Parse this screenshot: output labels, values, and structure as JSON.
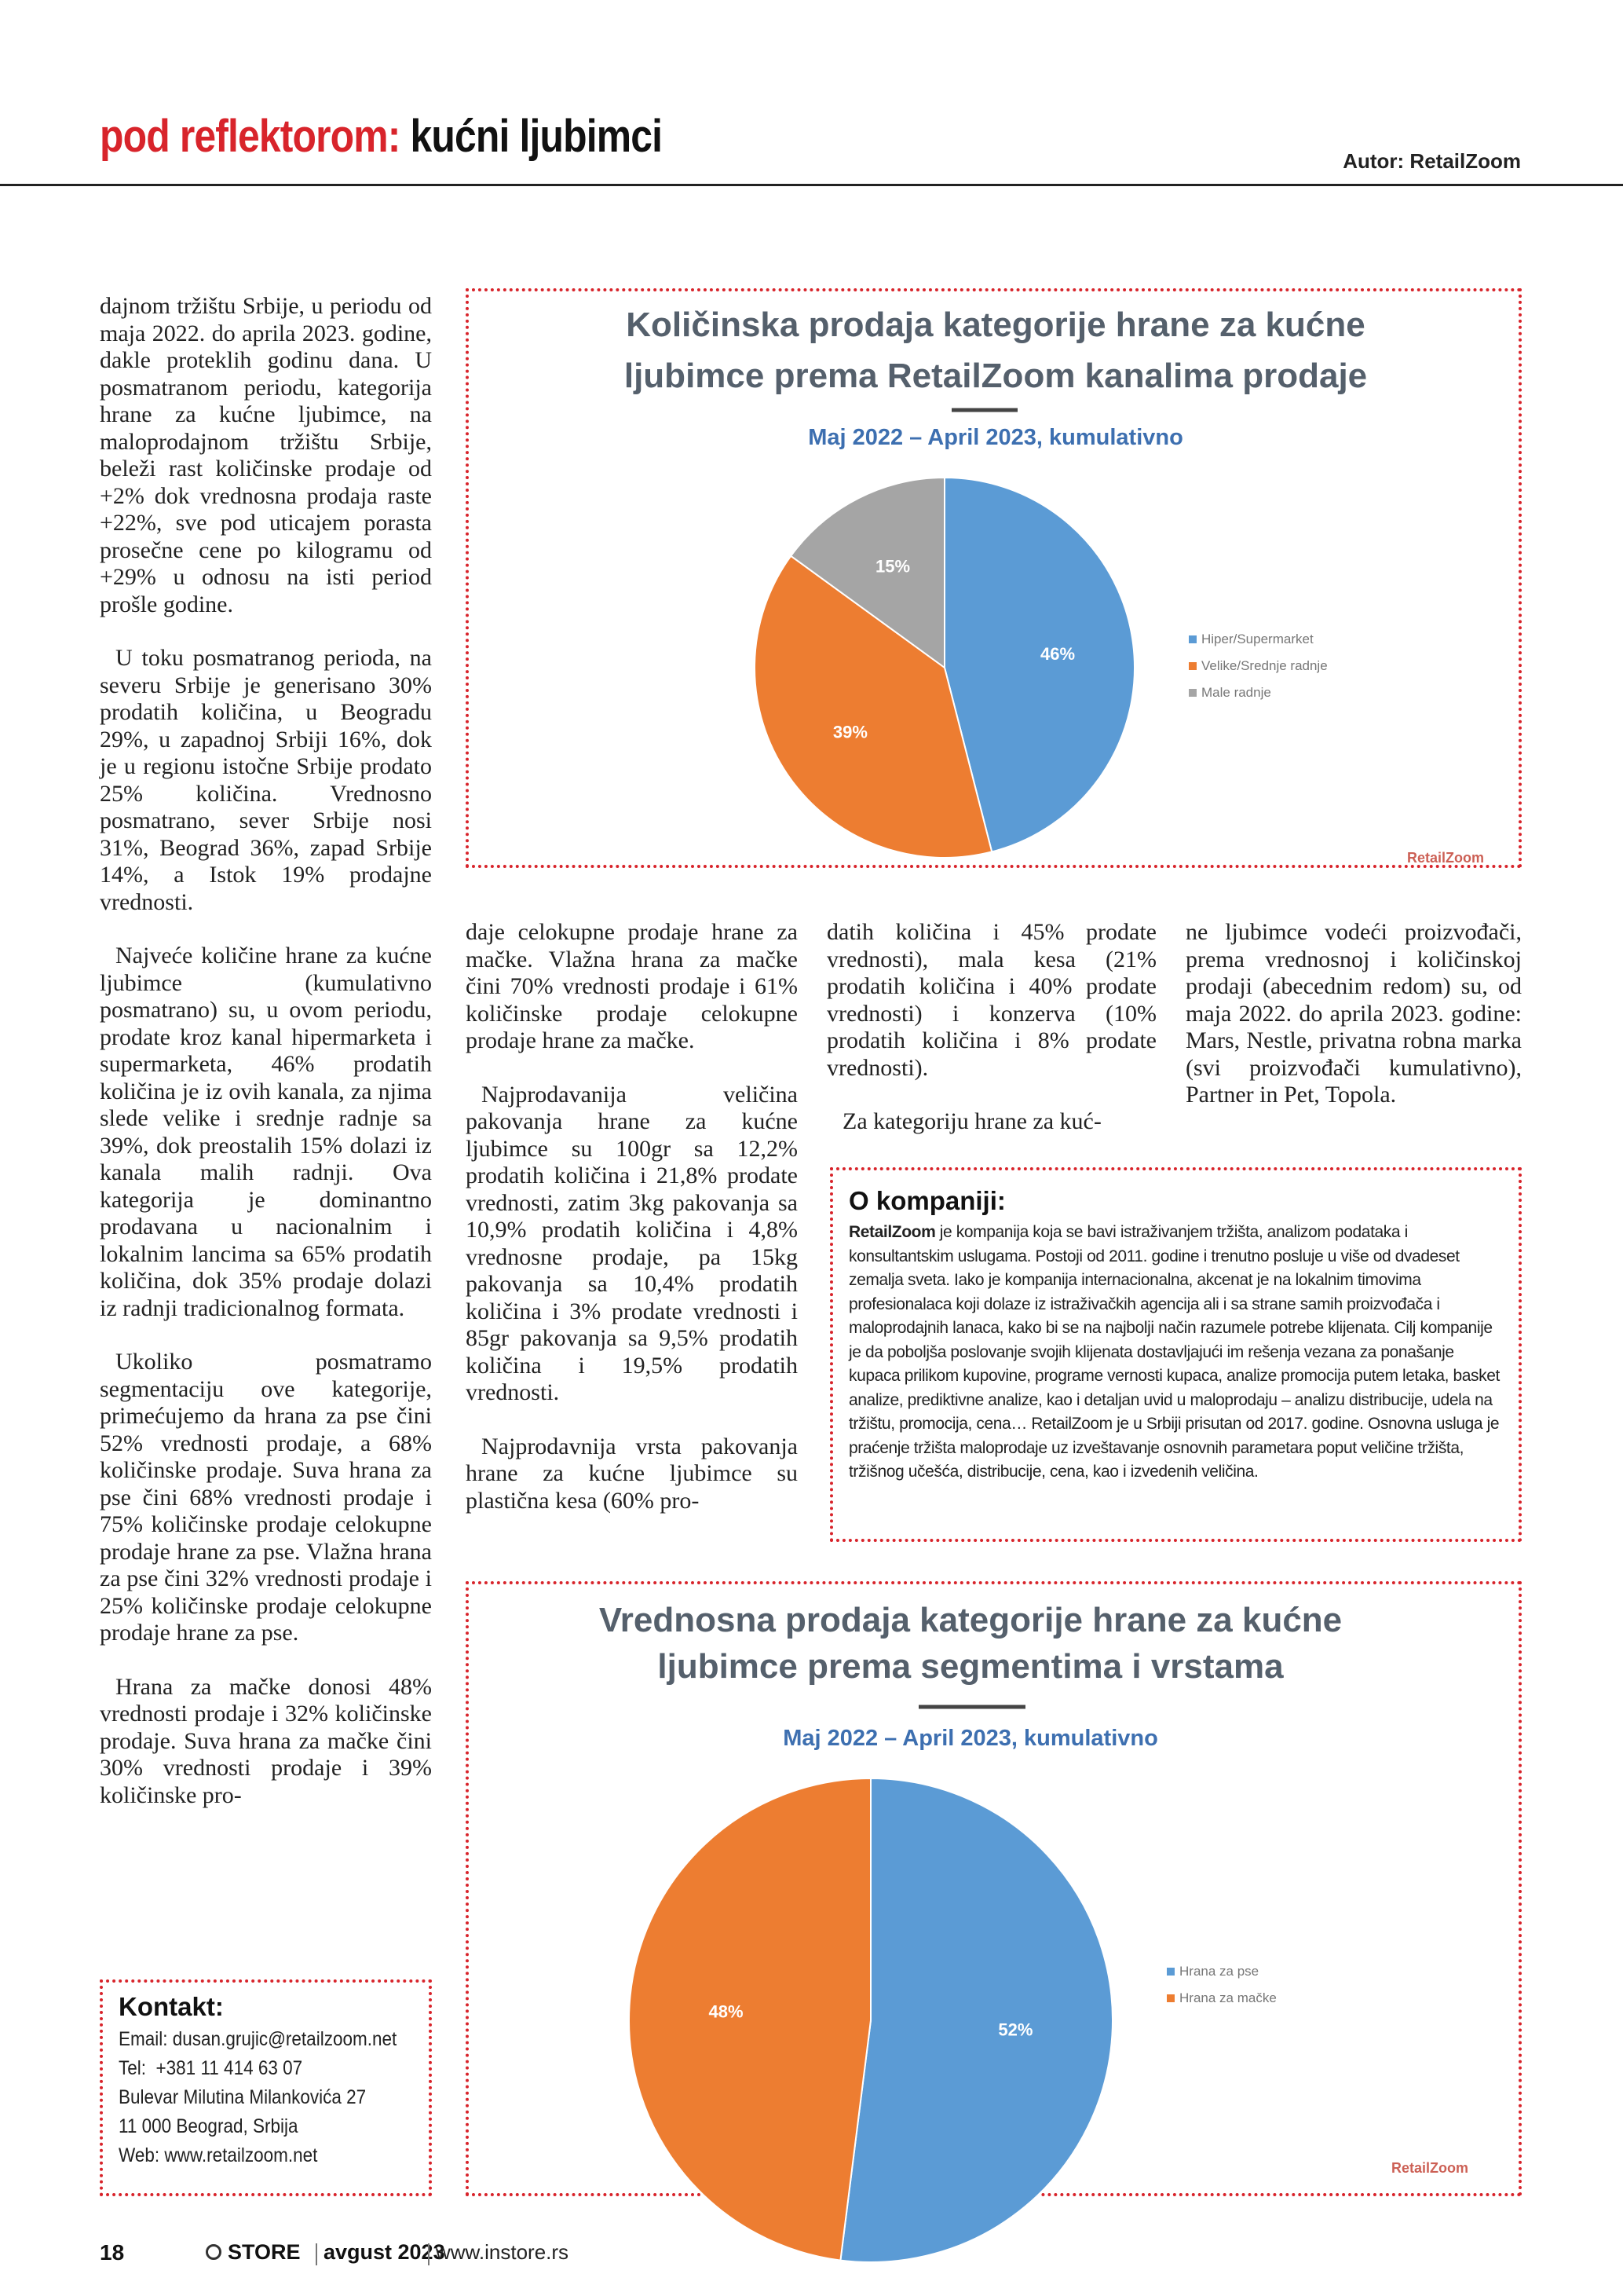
{
  "header": {
    "section": "pod reflektorom:",
    "title": "kućni ljubimci",
    "author": "Autor: RetailZoom"
  },
  "columns": [
    [
      "dajnom tržištu Srbije, u periodu od maja 2022. do aprila 2023. godine, dakle proteklih godinu dana. U posmatranom periodu, kategorija hrane za kućne ljubimce, na maloprodajnom tržištu Srbije, beleži rast količinske prodaje od +2% dok vrednosna prodaja raste +22%, sve pod uticajem porasta prosečne cene po kilogramu od +29% u odnosu na isti period prošle godine.",
      "U toku posmatranog perioda, na severu Srbije je generisano 30% prodatih količina, u Beogradu 29%, u zapadnoj Srbiji 16%, dok je u regionu istočne Srbije prodato 25% količina. Vrednosno posmatrano, sever Srbije nosi 31%, Beograd 36%, zapad Srbije 14%, a Istok 19% prodajne vrednosti.",
      "Najveće količine hrane za kućne ljubimce (kumulativno posmatrano) su, u ovom periodu, prodate kroz kanal hipermarketa i supermarketa, 46% prodatih količina je iz ovih kanala, za njima slede velike i srednje radnje sa 39%, dok preostalih 15% dolazi iz kanala malih radnji. Ova kategorija je dominantno prodavana u nacionalnim i lokalnim lancima sa 65% prodatih količina, dok 35% prodaje dolazi iz radnji tradicionalnog formata.",
      "Ukoliko posmatramo segmentaciju ove kategorije, primećujemo da hrana za pse čini 52% vrednosti prodaje, a 68% količinske prodaje. Suva hrana za pse čini 68% vrednosti prodaje i 75% količinske prodaje celokupne prodaje hrane za pse. Vlažna hrana za pse čini 32% vrednosti prodaje i 25% količinske prodaje celokupne prodaje hrane za pse.",
      "Hrana za mačke donosi 48% vrednosti prodaje i 32% količinske prodaje. Suva hrana za mačke čini 30% vrednosti prodaje i 39% količinske pro-"
    ],
    [
      "daje celokupne prodaje hrane za mačke. Vlažna hrana za mačke čini 70% vrednosti prodaje i 61% količinske prodaje celokupne prodaje hrane za mačke.",
      "Najprodavanija veličina pakovanja hrane za kućne ljubimce su 100gr sa 12,2% prodatih količina i 21,8% prodate vrednosti, zatim 3kg pakovanja sa 10,9% prodatih količina i 4,8% vrednosne prodaje, pa 15kg pakovanja sa 10,4% prodatih količina i 3% prodate vrednosti i 85gr pakovanja sa 9,5% prodatih količina i 19,5% prodatih vrednosti.",
      "Najprodavnija vrsta pakovanja hrane za kućne ljubimce su plastična kesa (60% pro-"
    ],
    [
      "datih količina i 45% prodate vrednosti), mala kesa (21% prodatih količina i 40% prodate vrednosti) i konzerva (10% prodatih količina i 8% prodate vrednosti).",
      "Za kategoriju hrane za kuć-"
    ],
    [
      "ne ljubimce vodeći proizvođači, prema vrednosnoj i količinskoj prodaji (abecednim redom) su, od maja 2022. do aprila 2023. godine: Mars, Nestle, privatna robna marka (svi proizvođači kumulativno), Partner in Pet, Topola."
    ]
  ],
  "company": {
    "title": "O kompaniji:",
    "name": "RetailZoom",
    "text": " je kompanija koja se bavi istraživanjem tržišta, analizom podataka i konsultantskim uslugama. Postoji od 2011. godine i trenutno posluje u više od dvadeset zemalja sveta. Iako je kompanija internacionalna, akcenat je na lokalnim timovima profesionalaca koji dolaze iz istraživačkih agencija ali i sa strane samih proizvođača i maloprodajnih lanaca, kako bi se na najbolji način razumele potrebe klijenata. Cilj kompanije je da poboljša poslovanje svojih klijenata dostavljajući im rešenja vezana za ponašanje kupaca prilikom kupovine, programe vernosti kupaca, analize promocija putem letaka, basket analize, prediktivne analize, kao i detaljan uvid u maloprodaju – analizu distribucije, udela na tržištu, promocija, cena… RetailZoom je u Srbiji prisutan od 2017. godine. Osnovna usluga je praćenje tržišta maloprodaje uz izveštavanje osnovnih parametara poput veličine tržišta, tržišnog učešća, distribucije, cena, kao i izvedenih veličina."
  },
  "contact": {
    "title": "Kontakt:",
    "lines": [
      "Email: dusan.grujic@retailzoom.net",
      "Tel:  +381 11 414 63 07",
      "Bulevar Milutina Milankovića 27",
      "11 000 Beograd, Srbija",
      "Web: www.retailzoom.net"
    ]
  },
  "footer": {
    "page": "18",
    "magazine": "STORE",
    "issue": "avgust 2023",
    "web": "www.instore.rs"
  },
  "chart_data": [
    {
      "type": "pie",
      "title": [
        "Količinska prodaja kategorije hrane za kućne",
        "ljubimce prema RetailZoom kanalima prodaje"
      ],
      "subtitle": "Maj 2022 – April 2023, kumulativno",
      "categories": [
        "Hiper/Supermarket",
        "Velike/Srednje radnje",
        "Male radnje"
      ],
      "values": [
        46,
        39,
        15
      ],
      "value_labels": [
        "46%",
        "39%",
        "15%"
      ],
      "colors": [
        "#5b9bd5",
        "#ed7d31",
        "#a5a5a5"
      ],
      "legend": "right",
      "watermark": "RetailZoom"
    },
    {
      "type": "pie",
      "title": [
        "Vrednosna prodaja kategorije hrane za kućne",
        "ljubimce prema segmentima i vrstama"
      ],
      "subtitle": "Maj 2022 – April 2023, kumulativno",
      "categories": [
        "Hrana za pse",
        "Hrana za mačke"
      ],
      "values": [
        52,
        48
      ],
      "value_labels": [
        "52%",
        "48%"
      ],
      "colors": [
        "#5b9bd5",
        "#ed7d31"
      ],
      "legend": "right",
      "watermark": "RetailZoom"
    }
  ]
}
